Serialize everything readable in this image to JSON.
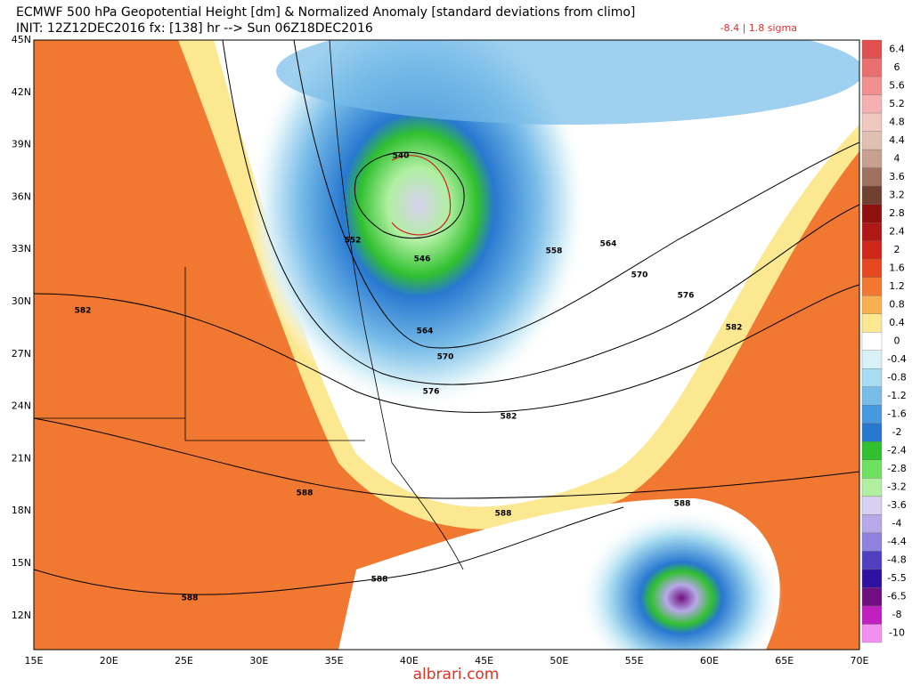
{
  "header": {
    "title": "ECMWF 500 hPa Geopotential Height [dm] & Normalized Anomaly [standard deviations from climo]",
    "init": "INIT: 12Z12DEC2016 fx: [138] hr --> Sun 06Z18DEC2016",
    "annotation": "-8.4 | 1.8 sigma"
  },
  "map": {
    "lat_labels": [
      "45N",
      "42N",
      "39N",
      "36N",
      "33N",
      "30N",
      "27N",
      "24N",
      "21N",
      "18N",
      "15N",
      "12N"
    ],
    "lon_labels": [
      "15E",
      "20E",
      "25E",
      "30E",
      "35E",
      "40E",
      "45E",
      "50E",
      "55E",
      "60E",
      "65E",
      "70E"
    ],
    "contour_labels": [
      "540",
      "552",
      "546",
      "558",
      "564",
      "570",
      "576",
      "582",
      "564",
      "570",
      "576",
      "582",
      "582",
      "588",
      "588",
      "588",
      "588",
      "588"
    ]
  },
  "colorbar": {
    "labels": [
      "6.4",
      "6",
      "5.6",
      "5.2",
      "4.8",
      "4.4",
      "4",
      "3.6",
      "3.2",
      "2.8",
      "2.4",
      "2",
      "1.6",
      "1.2",
      "0.8",
      "0.4",
      "0",
      "-0.4",
      "-0.8",
      "-1.2",
      "-1.6",
      "-2",
      "-2.4",
      "-2.8",
      "-3.2",
      "-3.6",
      "-4",
      "-4.4",
      "-4.8",
      "-5.5",
      "-6.5",
      "-8",
      "-10"
    ],
    "colors": [
      "#e05050",
      "#ea7070",
      "#f29090",
      "#f6b0b0",
      "#f0c8c0",
      "#e0c0b0",
      "#c8a090",
      "#a07060",
      "#704030",
      "#901010",
      "#b01818",
      "#d02818",
      "#e84820",
      "#f07830",
      "#f8b050",
      "#fce890",
      "#ffffff",
      "#d8f0f8",
      "#a8dcf0",
      "#78bce8",
      "#4898e0",
      "#2878d0",
      "#30c030",
      "#70e060",
      "#b0f0a0",
      "#d8d0f0",
      "#b8a8e8",
      "#9080e0",
      "#5040c0",
      "#3010a0",
      "#701080",
      "#c020c0",
      "#f090f0"
    ]
  },
  "watermark": "albrari.com"
}
